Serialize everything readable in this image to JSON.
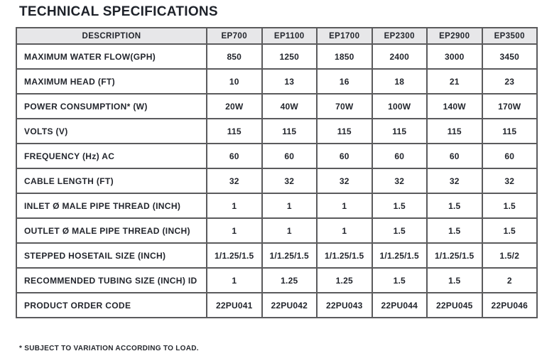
{
  "page": {
    "title": "TECHNICAL SPECIFICATIONS",
    "footnote": "* SUBJECT TO VARIATION ACCORDING TO LOAD."
  },
  "colors": {
    "header_background": "#e7e7e9",
    "grid_border": "#5b5b5d",
    "text": "#23262d",
    "page_background": "#ffffff"
  },
  "table": {
    "header": [
      "DESCRIPTION",
      "EP700",
      "EP1100",
      "EP1700",
      "EP2300",
      "EP2900",
      "EP3500"
    ],
    "rows": [
      {
        "label": "MAXIMUM WATER FLOW(GPH)",
        "values": [
          "850",
          "1250",
          "1850",
          "2400",
          "3000",
          "3450"
        ]
      },
      {
        "label": "MAXIMUM HEAD (FT)",
        "values": [
          "10",
          "13",
          "16",
          "18",
          "21",
          "23"
        ]
      },
      {
        "label": "POWER CONSUMPTION* (W)",
        "values": [
          "20W",
          "40W",
          "70W",
          "100W",
          "140W",
          "170W"
        ]
      },
      {
        "label": "VOLTS (V)",
        "values": [
          "115",
          "115",
          "115",
          "115",
          "115",
          "115"
        ]
      },
      {
        "label": "FREQUENCY (Hz) AC",
        "values": [
          "60",
          "60",
          "60",
          "60",
          "60",
          "60"
        ]
      },
      {
        "label": "CABLE LENGTH (FT)",
        "values": [
          "32",
          "32",
          "32",
          "32",
          "32",
          "32"
        ]
      },
      {
        "label": "INLET Ø MALE PIPE THREAD (INCH)",
        "values": [
          "1",
          "1",
          "1",
          "1.5",
          "1.5",
          "1.5"
        ]
      },
      {
        "label": "OUTLET Ø MALE PIPE THREAD (INCH)",
        "values": [
          "1",
          "1",
          "1",
          "1.5",
          "1.5",
          "1.5"
        ]
      },
      {
        "label": "STEPPED HOSETAIL SIZE (INCH)",
        "values": [
          "1/1.25/1.5",
          "1/1.25/1.5",
          "1/1.25/1.5",
          "1/1.25/1.5",
          "1/1.25/1.5",
          "1.5/2"
        ]
      },
      {
        "label": "RECOMMENDED TUBING SIZE (INCH) ID",
        "values": [
          "1",
          "1.25",
          "1.25",
          "1.5",
          "1.5",
          "2"
        ]
      },
      {
        "label": "PRODUCT ORDER CODE",
        "values": [
          "22PU041",
          "22PU042",
          "22PU043",
          "22PU044",
          "22PU045",
          "22PU046"
        ]
      }
    ]
  }
}
